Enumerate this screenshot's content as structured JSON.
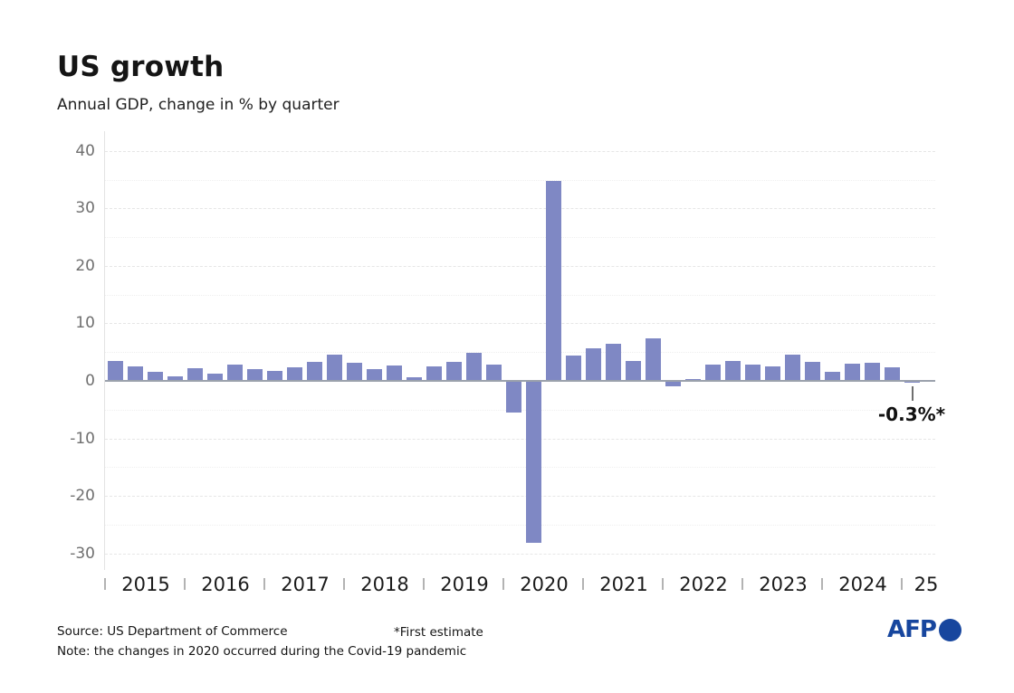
{
  "title": "US growth",
  "subtitle": "Annual GDP, change in % by quarter",
  "chart_data": {
    "type": "bar",
    "title": "US growth",
    "subtitle": "Annual GDP, change in % by quarter",
    "unit": "% (annualized quarterly GDP change)",
    "bar_color": "#7f88c4",
    "axis_color": "#9ba1ac",
    "grid": true,
    "legend_position": "none",
    "y_axis": {
      "min": -30,
      "max": 40,
      "major_ticks": [
        40,
        30,
        20,
        10,
        0,
        -10,
        -20,
        -30
      ],
      "minor_ticks": [
        35,
        25,
        15,
        5,
        -5,
        -15,
        -25
      ]
    },
    "series": [
      {
        "year_label": "2015",
        "values": [
          3.4,
          2.5,
          1.6,
          0.8
        ]
      },
      {
        "year_label": "2016",
        "values": [
          2.2,
          1.3,
          2.8,
          2.0
        ]
      },
      {
        "year_label": "2017",
        "values": [
          1.8,
          2.4,
          3.3,
          4.6
        ]
      },
      {
        "year_label": "2018",
        "values": [
          3.2,
          2.0,
          2.6,
          0.7
        ]
      },
      {
        "year_label": "2019",
        "values": [
          2.5,
          3.3,
          4.8,
          2.8
        ]
      },
      {
        "year_label": "2020",
        "values": [
          -5.5,
          -28.1,
          34.8,
          4.4
        ]
      },
      {
        "year_label": "2021",
        "values": [
          5.6,
          6.4,
          3.5,
          7.4
        ]
      },
      {
        "year_label": "2022",
        "values": [
          -1.0,
          0.3,
          2.8,
          3.4
        ]
      },
      {
        "year_label": "2023",
        "values": [
          2.9,
          2.5,
          4.5,
          3.3
        ]
      },
      {
        "year_label": "2024",
        "values": [
          1.6,
          3.0,
          3.1,
          2.4
        ]
      },
      {
        "year_label": "25",
        "values": [
          -0.3
        ]
      }
    ],
    "annotation": {
      "text": "-0.3%*",
      "target_year": "25",
      "target_quarter": 1
    }
  },
  "footer": {
    "source": "Source: US Department of Commerce",
    "estimate_note": "*First estimate",
    "note": "Note: the changes in 2020 occurred during the Covid-19 pandemic"
  },
  "branding": {
    "logo_text": "AFP",
    "logo_color": "#17469e"
  }
}
